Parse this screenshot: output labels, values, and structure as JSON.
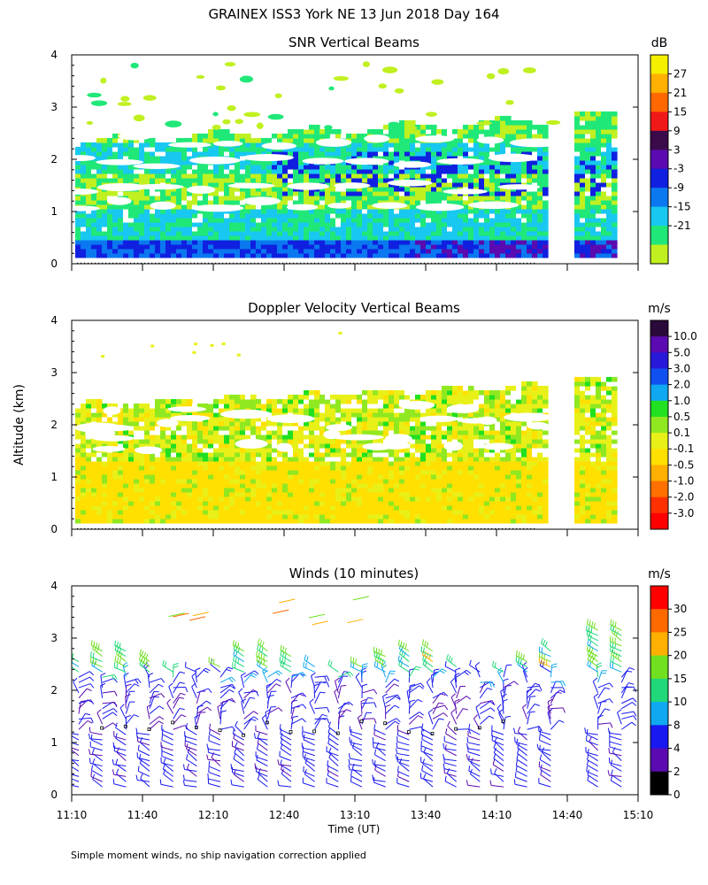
{
  "figure_title": "GRAINEX ISS3 York NE  13 Jun 2018 Day 164",
  "xlabel": "Time (UT)",
  "ylabel": "Altitude (km)",
  "footnote": "Simple moment winds, no ship navigation correction applied",
  "colors": {
    "white": "#ffffff",
    "axis": "#000000"
  },
  "chart_data": [
    {
      "type": "heatmap",
      "title": "SNR Vertical Beams",
      "xlabel": "",
      "ylabel": "Altitude (km)",
      "x_range_hours": [
        11.1667,
        15.1667
      ],
      "ylim": [
        0,
        4
      ],
      "yticks": [
        "0",
        "1",
        "2",
        "3",
        "4"
      ],
      "colorbar": {
        "unit": "dB",
        "labels": [
          "27",
          "21",
          "15",
          "9",
          "3",
          "-3",
          "-9",
          "-15",
          "-21"
        ],
        "colors": [
          "#f5ef00",
          "#ffb000",
          "#ff6800",
          "#f01818",
          "#3a0a4a",
          "#5a0ab0",
          "#1020e0",
          "#0a78f0",
          "#18c8f0",
          "#20e878",
          "#c0f020"
        ]
      },
      "data_gaps_hours": [
        [
          14.5,
          14.7
        ]
      ],
      "cell_levels": [
        [
          1,
          1,
          1,
          2,
          2,
          2,
          3,
          3,
          4,
          4,
          4,
          3,
          3,
          2,
          2,
          1,
          1
        ],
        [
          2,
          2,
          2,
          3,
          3,
          3,
          3,
          4,
          4,
          4,
          3,
          3,
          3,
          2,
          2,
          2,
          1
        ],
        [
          2,
          2,
          3,
          3,
          3,
          4,
          4,
          4,
          3,
          3,
          3,
          3,
          2,
          2,
          2,
          1,
          1
        ],
        [
          1,
          2,
          2,
          2,
          3,
          3,
          3,
          3,
          3,
          2,
          2,
          2,
          2,
          1,
          1,
          1,
          1
        ],
        [
          1,
          1,
          2,
          2,
          2,
          2,
          2,
          3,
          3,
          3,
          2,
          2,
          2,
          2,
          2,
          1,
          1
        ],
        [
          0,
          1,
          1,
          2,
          2,
          2,
          2,
          2,
          3,
          3,
          3,
          3,
          2,
          2,
          1,
          1,
          0
        ]
      ]
    },
    {
      "type": "heatmap",
      "title": "Doppler Velocity Vertical Beams",
      "xlabel": "",
      "ylabel": "Altitude (km)",
      "x_range_hours": [
        11.1667,
        15.1667
      ],
      "ylim": [
        0,
        4
      ],
      "yticks": [
        "0",
        "1",
        "2",
        "3",
        "4"
      ],
      "colorbar": {
        "unit": "m/s",
        "labels": [
          "10.0",
          "5.0",
          "3.0",
          "2.0",
          "1.0",
          "0.5",
          "0.1",
          "-0.1",
          "-0.5",
          "-1.0",
          "-2.0",
          "-3.0"
        ],
        "colors": [
          "#2a0a3a",
          "#5a0ab0",
          "#2818d8",
          "#1050f0",
          "#10a8f0",
          "#20e020",
          "#90e820",
          "#e8f018",
          "#ffe000",
          "#ffb000",
          "#ff7000",
          "#ff3000",
          "#ff0000"
        ]
      },
      "data_gaps_hours": [
        [
          14.5,
          14.7
        ]
      ],
      "dominant_values": [
        "-0.1",
        "-0.5",
        "0.1"
      ]
    },
    {
      "type": "scatter",
      "title": "Winds (10 minutes)",
      "xlabel": "Time (UT)",
      "ylabel": "Altitude (km)",
      "x_range_hours": [
        11.1667,
        15.1667
      ],
      "xticks": [
        "11:10",
        "11:40",
        "12:10",
        "12:40",
        "13:10",
        "13:40",
        "14:10",
        "14:40",
        "15:10"
      ],
      "ylim": [
        0,
        4
      ],
      "yticks": [
        "0",
        "1",
        "2",
        "3",
        "4"
      ],
      "colorbar": {
        "unit": "m/s",
        "labels": [
          "30",
          "25",
          "20",
          "15",
          "10",
          "8",
          "4",
          "2",
          "0"
        ],
        "colors": [
          "#ff0000",
          "#ff6a00",
          "#ffb000",
          "#70e020",
          "#20d878",
          "#10a8f0",
          "#1818f0",
          "#5a0ab0",
          "#000000"
        ]
      },
      "profile_hours": [
        11.1667,
        11.3333,
        11.5,
        11.6667,
        11.8333,
        12.0,
        12.1667,
        12.3333,
        12.5,
        12.6667,
        12.8333,
        13.0,
        13.1667,
        13.3333,
        13.5,
        13.6667,
        13.8333,
        14.0,
        14.1667,
        14.3333,
        14.5,
        14.8333,
        15.0
      ],
      "speed_by_altitude_km": [
        {
          "alt": 0.5,
          "speed": 5
        },
        {
          "alt": 1.0,
          "speed": 5
        },
        {
          "alt": 1.5,
          "speed": 4
        },
        {
          "alt": 2.0,
          "speed": 5
        },
        {
          "alt": 2.5,
          "speed": 12
        },
        {
          "alt": 3.0,
          "speed": 10
        },
        {
          "alt": 3.7,
          "speed": 22
        }
      ]
    }
  ]
}
